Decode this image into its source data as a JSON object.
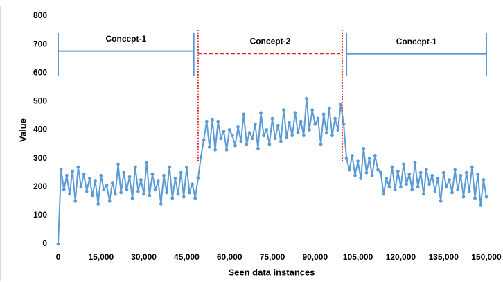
{
  "chart_data": {
    "type": "line",
    "xlabel": "Seen data instances",
    "ylabel": "Value",
    "x": [
      0,
      1000,
      2000,
      3000,
      4000,
      5000,
      6000,
      7000,
      8000,
      9000,
      10000,
      11000,
      12000,
      13000,
      14000,
      15000,
      16000,
      17000,
      18000,
      19000,
      20000,
      21000,
      22000,
      23000,
      24000,
      25000,
      26000,
      27000,
      28000,
      29000,
      30000,
      31000,
      32000,
      33000,
      34000,
      35000,
      36000,
      37000,
      38000,
      39000,
      40000,
      41000,
      42000,
      43000,
      44000,
      45000,
      46000,
      47000,
      48000,
      49000,
      50000,
      51000,
      52000,
      53000,
      54000,
      55000,
      56000,
      57000,
      58000,
      59000,
      60000,
      61000,
      62000,
      63000,
      64000,
      65000,
      66000,
      67000,
      68000,
      69000,
      70000,
      71000,
      72000,
      73000,
      74000,
      75000,
      76000,
      77000,
      78000,
      79000,
      80000,
      81000,
      82000,
      83000,
      84000,
      85000,
      86000,
      87000,
      88000,
      89000,
      90000,
      91000,
      92000,
      93000,
      94000,
      95000,
      96000,
      97000,
      98000,
      99000,
      100000,
      101000,
      102000,
      103000,
      104000,
      105000,
      106000,
      107000,
      108000,
      109000,
      110000,
      111000,
      112000,
      113000,
      114000,
      115000,
      116000,
      117000,
      118000,
      119000,
      120000,
      121000,
      122000,
      123000,
      124000,
      125000,
      126000,
      127000,
      128000,
      129000,
      130000,
      131000,
      132000,
      133000,
      134000,
      135000,
      136000,
      137000,
      138000,
      139000,
      140000,
      141000,
      142000,
      143000,
      144000,
      145000,
      146000,
      147000,
      148000,
      149000,
      150000
    ],
    "series": [
      {
        "color": "#5b9bd5",
        "values": [
          0,
          262,
          190,
          240,
          175,
          255,
          150,
          270,
          200,
          245,
          185,
          230,
          170,
          220,
          140,
          240,
          190,
          205,
          150,
          215,
          175,
          280,
          180,
          250,
          190,
          235,
          160,
          270,
          185,
          225,
          175,
          285,
          170,
          245,
          190,
          220,
          140,
          240,
          180,
          270,
          160,
          230,
          175,
          250,
          165,
          268,
          180,
          210,
          160,
          230,
          305,
          365,
          430,
          340,
          435,
          330,
          430,
          370,
          395,
          330,
          400,
          380,
          345,
          410,
          360,
          455,
          350,
          390,
          370,
          420,
          335,
          460,
          380,
          400,
          350,
          440,
          370,
          415,
          360,
          470,
          375,
          425,
          380,
          460,
          390,
          430,
          380,
          510,
          400,
          470,
          420,
          440,
          350,
          455,
          390,
          475,
          380,
          440,
          400,
          490,
          420,
          300,
          260,
          310,
          240,
          290,
          230,
          335,
          250,
          300,
          240,
          310,
          260,
          250,
          175,
          230,
          200,
          270,
          190,
          255,
          200,
          280,
          210,
          245,
          190,
          285,
          200,
          250,
          175,
          260,
          210,
          240,
          185,
          230,
          150,
          250,
          200,
          225,
          180,
          260,
          190,
          240,
          165,
          250,
          185,
          270,
          160,
          245,
          135,
          225,
          165
        ]
      }
    ],
    "xlim": [
      0,
      150000
    ],
    "xticks": [
      0,
      {
        "value": 15000,
        "label": "15,000"
      },
      {
        "value": 30000,
        "label": "30,000"
      },
      {
        "value": 45000,
        "label": "45,000"
      },
      {
        "value": 60000,
        "label": "60,000"
      },
      {
        "value": 75000,
        "label": "75,000"
      },
      {
        "value": 90000,
        "label": "90,000"
      },
      {
        "value": 105000,
        "label": "105,000"
      },
      {
        "value": 120000,
        "label": "120,000"
      },
      {
        "value": 135000,
        "label": "135,000"
      },
      {
        "value": 150000,
        "label": "150,000"
      }
    ],
    "ylim": [
      0,
      800
    ],
    "yticks": [
      0,
      100,
      200,
      300,
      400,
      500,
      600,
      700,
      800
    ],
    "annotations": [
      {
        "text": "Concept-1",
        "x": [
          0,
          47500
        ],
        "y": 677,
        "span": [
          590,
          740
        ],
        "color": "#5b9bd5",
        "style": "bracket"
      },
      {
        "text": "Concept-2",
        "x": [
          49000,
          99500
        ],
        "y": 668,
        "span": [
          290,
          750
        ],
        "color": "#e02020",
        "style": "dashed"
      },
      {
        "text": "Concept-1",
        "x": [
          101000,
          150000
        ],
        "y": 667,
        "span": [
          590,
          740
        ],
        "color": "#5b9bd5",
        "style": "bracket"
      }
    ]
  }
}
